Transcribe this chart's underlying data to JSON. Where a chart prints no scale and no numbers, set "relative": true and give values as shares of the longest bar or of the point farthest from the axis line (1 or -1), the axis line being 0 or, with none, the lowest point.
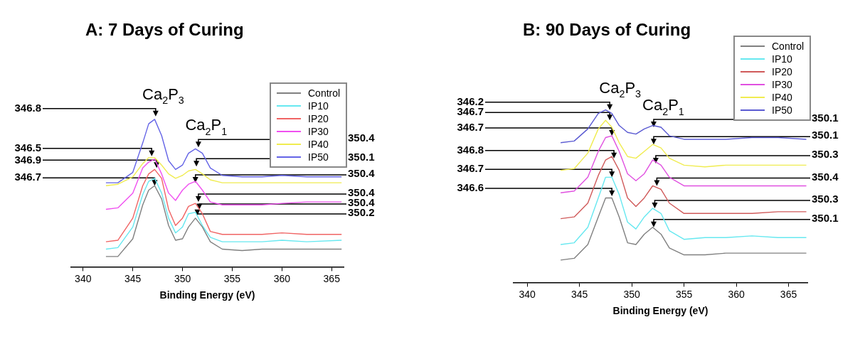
{
  "chart_data": [
    {
      "type": "line",
      "title": "A: 7 Days of Curing",
      "xlabel": "Binding Energy (eV)",
      "relative": true,
      "xlim": [
        338.8,
        366.2
      ],
      "xticks": [
        340,
        345,
        350,
        355,
        360,
        365
      ],
      "grid": false,
      "legend": "top right",
      "marker": "none",
      "line_style": "solid",
      "x": [
        342.3,
        343.5,
        345,
        346,
        346.6,
        347.2,
        347.9,
        348.6,
        349.3,
        350,
        350.6,
        351.3,
        352,
        352.8,
        354,
        356,
        358,
        360,
        362.5,
        366
      ],
      "series": [
        {
          "name": "Control",
          "color": "#808080",
          "values": [
            0.07,
            0.07,
            0.19,
            0.42,
            0.52,
            0.55,
            0.46,
            0.28,
            0.18,
            0.19,
            0.27,
            0.33,
            0.27,
            0.17,
            0.12,
            0.11,
            0.12,
            0.12,
            0.12,
            0.12
          ]
        },
        {
          "name": "IP10",
          "color": "#66e8f0",
          "values": [
            0.12,
            0.13,
            0.27,
            0.49,
            0.58,
            0.6,
            0.5,
            0.33,
            0.23,
            0.27,
            0.36,
            0.37,
            0.28,
            0.2,
            0.17,
            0.17,
            0.17,
            0.18,
            0.17,
            0.18
          ]
        },
        {
          "name": "IP20",
          "color": "#f06464",
          "values": [
            0.17,
            0.18,
            0.33,
            0.55,
            0.63,
            0.66,
            0.6,
            0.39,
            0.28,
            0.33,
            0.41,
            0.43,
            0.36,
            0.24,
            0.22,
            0.22,
            0.22,
            0.23,
            0.22,
            0.22
          ]
        },
        {
          "name": "IP30",
          "color": "#f050f0",
          "values": [
            0.39,
            0.4,
            0.5,
            0.67,
            0.71,
            0.73,
            0.63,
            0.5,
            0.45,
            0.52,
            0.56,
            0.58,
            0.52,
            0.44,
            0.42,
            0.42,
            0.42,
            0.43,
            0.44,
            0.44
          ]
        },
        {
          "name": "IP40",
          "color": "#f0ec50",
          "values": [
            0.55,
            0.56,
            0.61,
            0.7,
            0.74,
            0.74,
            0.69,
            0.63,
            0.6,
            0.62,
            0.65,
            0.66,
            0.63,
            0.59,
            0.57,
            0.57,
            0.57,
            0.57,
            0.57,
            0.57
          ]
        },
        {
          "name": "IP50",
          "color": "#6464e6",
          "values": [
            0.57,
            0.57,
            0.64,
            0.84,
            0.97,
            1,
            0.89,
            0.72,
            0.66,
            0.69,
            0.77,
            0.8,
            0.77,
            0.67,
            0.62,
            0.61,
            0.61,
            0.62,
            0.61,
            0.61
          ]
        }
      ],
      "annotations": [
        "Ca$_{2}$P$_{3}$",
        "Ca$_{2}$P$_{1}$",
        {
          "text": "346.8",
          "x": 347.3,
          "y": 1.02
        },
        {
          "text": "346.5",
          "x": 346.9,
          "y": 0.75
        },
        {
          "text": "346.9",
          "x": 347.4,
          "y": 0.67
        },
        {
          "text": "346.7",
          "x": 347.2,
          "y": 0.55
        },
        {
          "text": "350.4",
          "x": 351.6,
          "y": 0.81
        },
        {
          "text": "350.1",
          "x": 351.4,
          "y": 0.68
        },
        {
          "text": "350.4",
          "x": 351.3,
          "y": 0.57
        },
        {
          "text": "350.4",
          "x": 351.6,
          "y": 0.44
        },
        {
          "text": "350.4",
          "x": 351.7,
          "y": 0.39
        },
        {
          "text": "350.2",
          "x": 351.5,
          "y": 0.35
        }
      ]
    },
    {
      "type": "line",
      "title": "B: 90 Days of Curing",
      "xlabel": "Binding Energy (eV)",
      "relative": true,
      "xlim": [
        338.7,
        366.8
      ],
      "xticks": [
        340,
        345,
        350,
        355,
        360,
        365
      ],
      "grid": false,
      "legend": "top right",
      "marker": "none",
      "line_style": "solid",
      "x": [
        343.2,
        344.5,
        345.8,
        346.8,
        347.5,
        348.1,
        348.8,
        349.6,
        350.4,
        351.2,
        352,
        352.8,
        353.6,
        355,
        357,
        359,
        361.5,
        364,
        366.7
      ],
      "series": [
        {
          "name": "Control",
          "color": "#808080",
          "values": [
            0.13,
            0.14,
            0.22,
            0.38,
            0.49,
            0.49,
            0.38,
            0.23,
            0.22,
            0.28,
            0.32,
            0.28,
            0.2,
            0.16,
            0.16,
            0.17,
            0.17,
            0.17,
            0.17
          ]
        },
        {
          "name": "IP10",
          "color": "#66e8f0",
          "values": [
            0.22,
            0.23,
            0.32,
            0.49,
            0.61,
            0.61,
            0.51,
            0.35,
            0.31,
            0.38,
            0.43,
            0.4,
            0.3,
            0.25,
            0.26,
            0.26,
            0.27,
            0.26,
            0.26
          ]
        },
        {
          "name": "IP20",
          "color": "#d05a5a",
          "values": [
            0.37,
            0.38,
            0.46,
            0.62,
            0.71,
            0.73,
            0.65,
            0.49,
            0.44,
            0.49,
            0.56,
            0.54,
            0.46,
            0.4,
            0.4,
            0.4,
            0.4,
            0.41,
            0.41
          ]
        },
        {
          "name": "IP30",
          "color": "#e050e0",
          "values": [
            0.52,
            0.53,
            0.61,
            0.76,
            0.84,
            0.85,
            0.76,
            0.63,
            0.59,
            0.63,
            0.71,
            0.68,
            0.61,
            0.56,
            0.56,
            0.56,
            0.56,
            0.56,
            0.56
          ]
        },
        {
          "name": "IP40",
          "color": "#f0ec50",
          "values": [
            0.65,
            0.66,
            0.75,
            0.89,
            0.94,
            0.9,
            0.81,
            0.73,
            0.72,
            0.76,
            0.8,
            0.78,
            0.72,
            0.68,
            0.67,
            0.68,
            0.68,
            0.68,
            0.68
          ]
        },
        {
          "name": "IP50",
          "color": "#5a5ad2",
          "values": [
            0.81,
            0.82,
            0.89,
            0.98,
            1,
            0.98,
            0.91,
            0.87,
            0.86,
            0.89,
            0.91,
            0.9,
            0.85,
            0.83,
            0.83,
            0.83,
            0.84,
            0.84,
            0.83
          ]
        }
      ],
      "annotations": [
        "Ca$_{2}$P$_{3}$",
        "Ca$_{2}$P$_{1}$",
        {
          "text": "346.2",
          "x": 347.9,
          "y": 1
        },
        {
          "text": "346.7",
          "x": 347.9,
          "y": 0.94
        },
        {
          "text": "346.7",
          "x": 348.1,
          "y": 0.85
        },
        {
          "text": "346.8",
          "x": 348.3,
          "y": 0.72
        },
        {
          "text": "346.7",
          "x": 348.1,
          "y": 0.61
        },
        {
          "text": "346.6",
          "x": 348.1,
          "y": 0.5
        },
        {
          "text": "350.1",
          "x": 352.1,
          "y": 0.9
        },
        {
          "text": "350.1",
          "x": 352.1,
          "y": 0.8
        },
        {
          "text": "350.3",
          "x": 352.3,
          "y": 0.69
        },
        {
          "text": "350.4",
          "x": 352.4,
          "y": 0.56
        },
        {
          "text": "350.3",
          "x": 352.2,
          "y": 0.43
        },
        {
          "text": "350.1",
          "x": 352.1,
          "y": 0.32
        }
      ]
    }
  ]
}
